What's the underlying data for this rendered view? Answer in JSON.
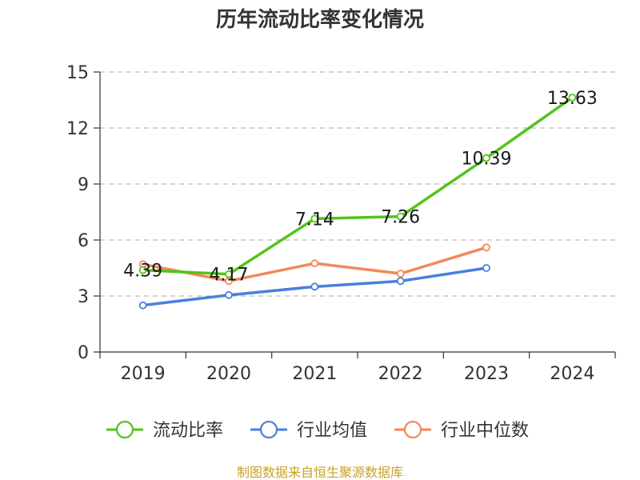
{
  "chart_data": {
    "type": "line",
    "title": "历年流动比率变化情况",
    "categories": [
      "2019",
      "2020",
      "2021",
      "2022",
      "2023",
      "2024"
    ],
    "ylim": [
      0,
      15
    ],
    "yticks": [
      0,
      3,
      6,
      9,
      12,
      15
    ],
    "grid": true,
    "legend_position": "bottom",
    "series": [
      {
        "name": "流动比率",
        "color": "#52c41a",
        "values": [
          4.39,
          4.17,
          7.14,
          7.26,
          10.39,
          13.63
        ],
        "labels": [
          "4.39",
          "4.17",
          "7.14",
          "7.26",
          "10.39",
          "13.63"
        ]
      },
      {
        "name": "行业均值",
        "color": "#4a7fdc",
        "values": [
          2.5,
          3.05,
          3.5,
          3.8,
          4.5,
          null
        ]
      },
      {
        "name": "行业中位数",
        "color": "#f4875a",
        "values": [
          4.7,
          3.8,
          4.75,
          4.2,
          5.6,
          null
        ]
      }
    ]
  },
  "footer": {
    "source": "制图数据来自恒生聚源数据库"
  }
}
